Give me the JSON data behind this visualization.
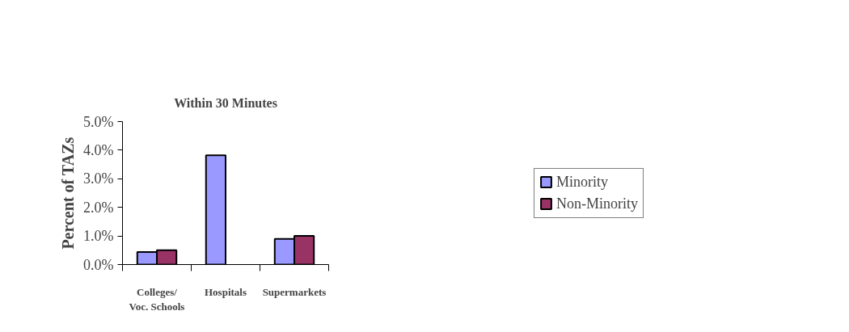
{
  "chart_data": {
    "type": "bar",
    "title": "Within 30 Minutes",
    "ylabel": "Percent of TAZs",
    "categories": [
      "Colleges/\nVoc. Schools",
      "Hospitals",
      "Supermarkets"
    ],
    "series": [
      {
        "name": "Minority",
        "color": "#9999ff",
        "values": [
          0.44,
          3.82,
          0.9
        ]
      },
      {
        "name": "Non-Minority",
        "color": "#993366",
        "values": [
          0.5,
          null,
          1.0
        ]
      }
    ],
    "ylim": [
      0,
      5
    ],
    "yticks": [
      {
        "value": 0,
        "label": "0.0%"
      },
      {
        "value": 1,
        "label": "1.0%"
      },
      {
        "value": 2,
        "label": "2.0%"
      },
      {
        "value": 3,
        "label": "3.0%"
      },
      {
        "value": 4,
        "label": "4.0%"
      },
      {
        "value": 5,
        "label": "5.0%"
      }
    ],
    "grid": false,
    "legend": "right"
  }
}
